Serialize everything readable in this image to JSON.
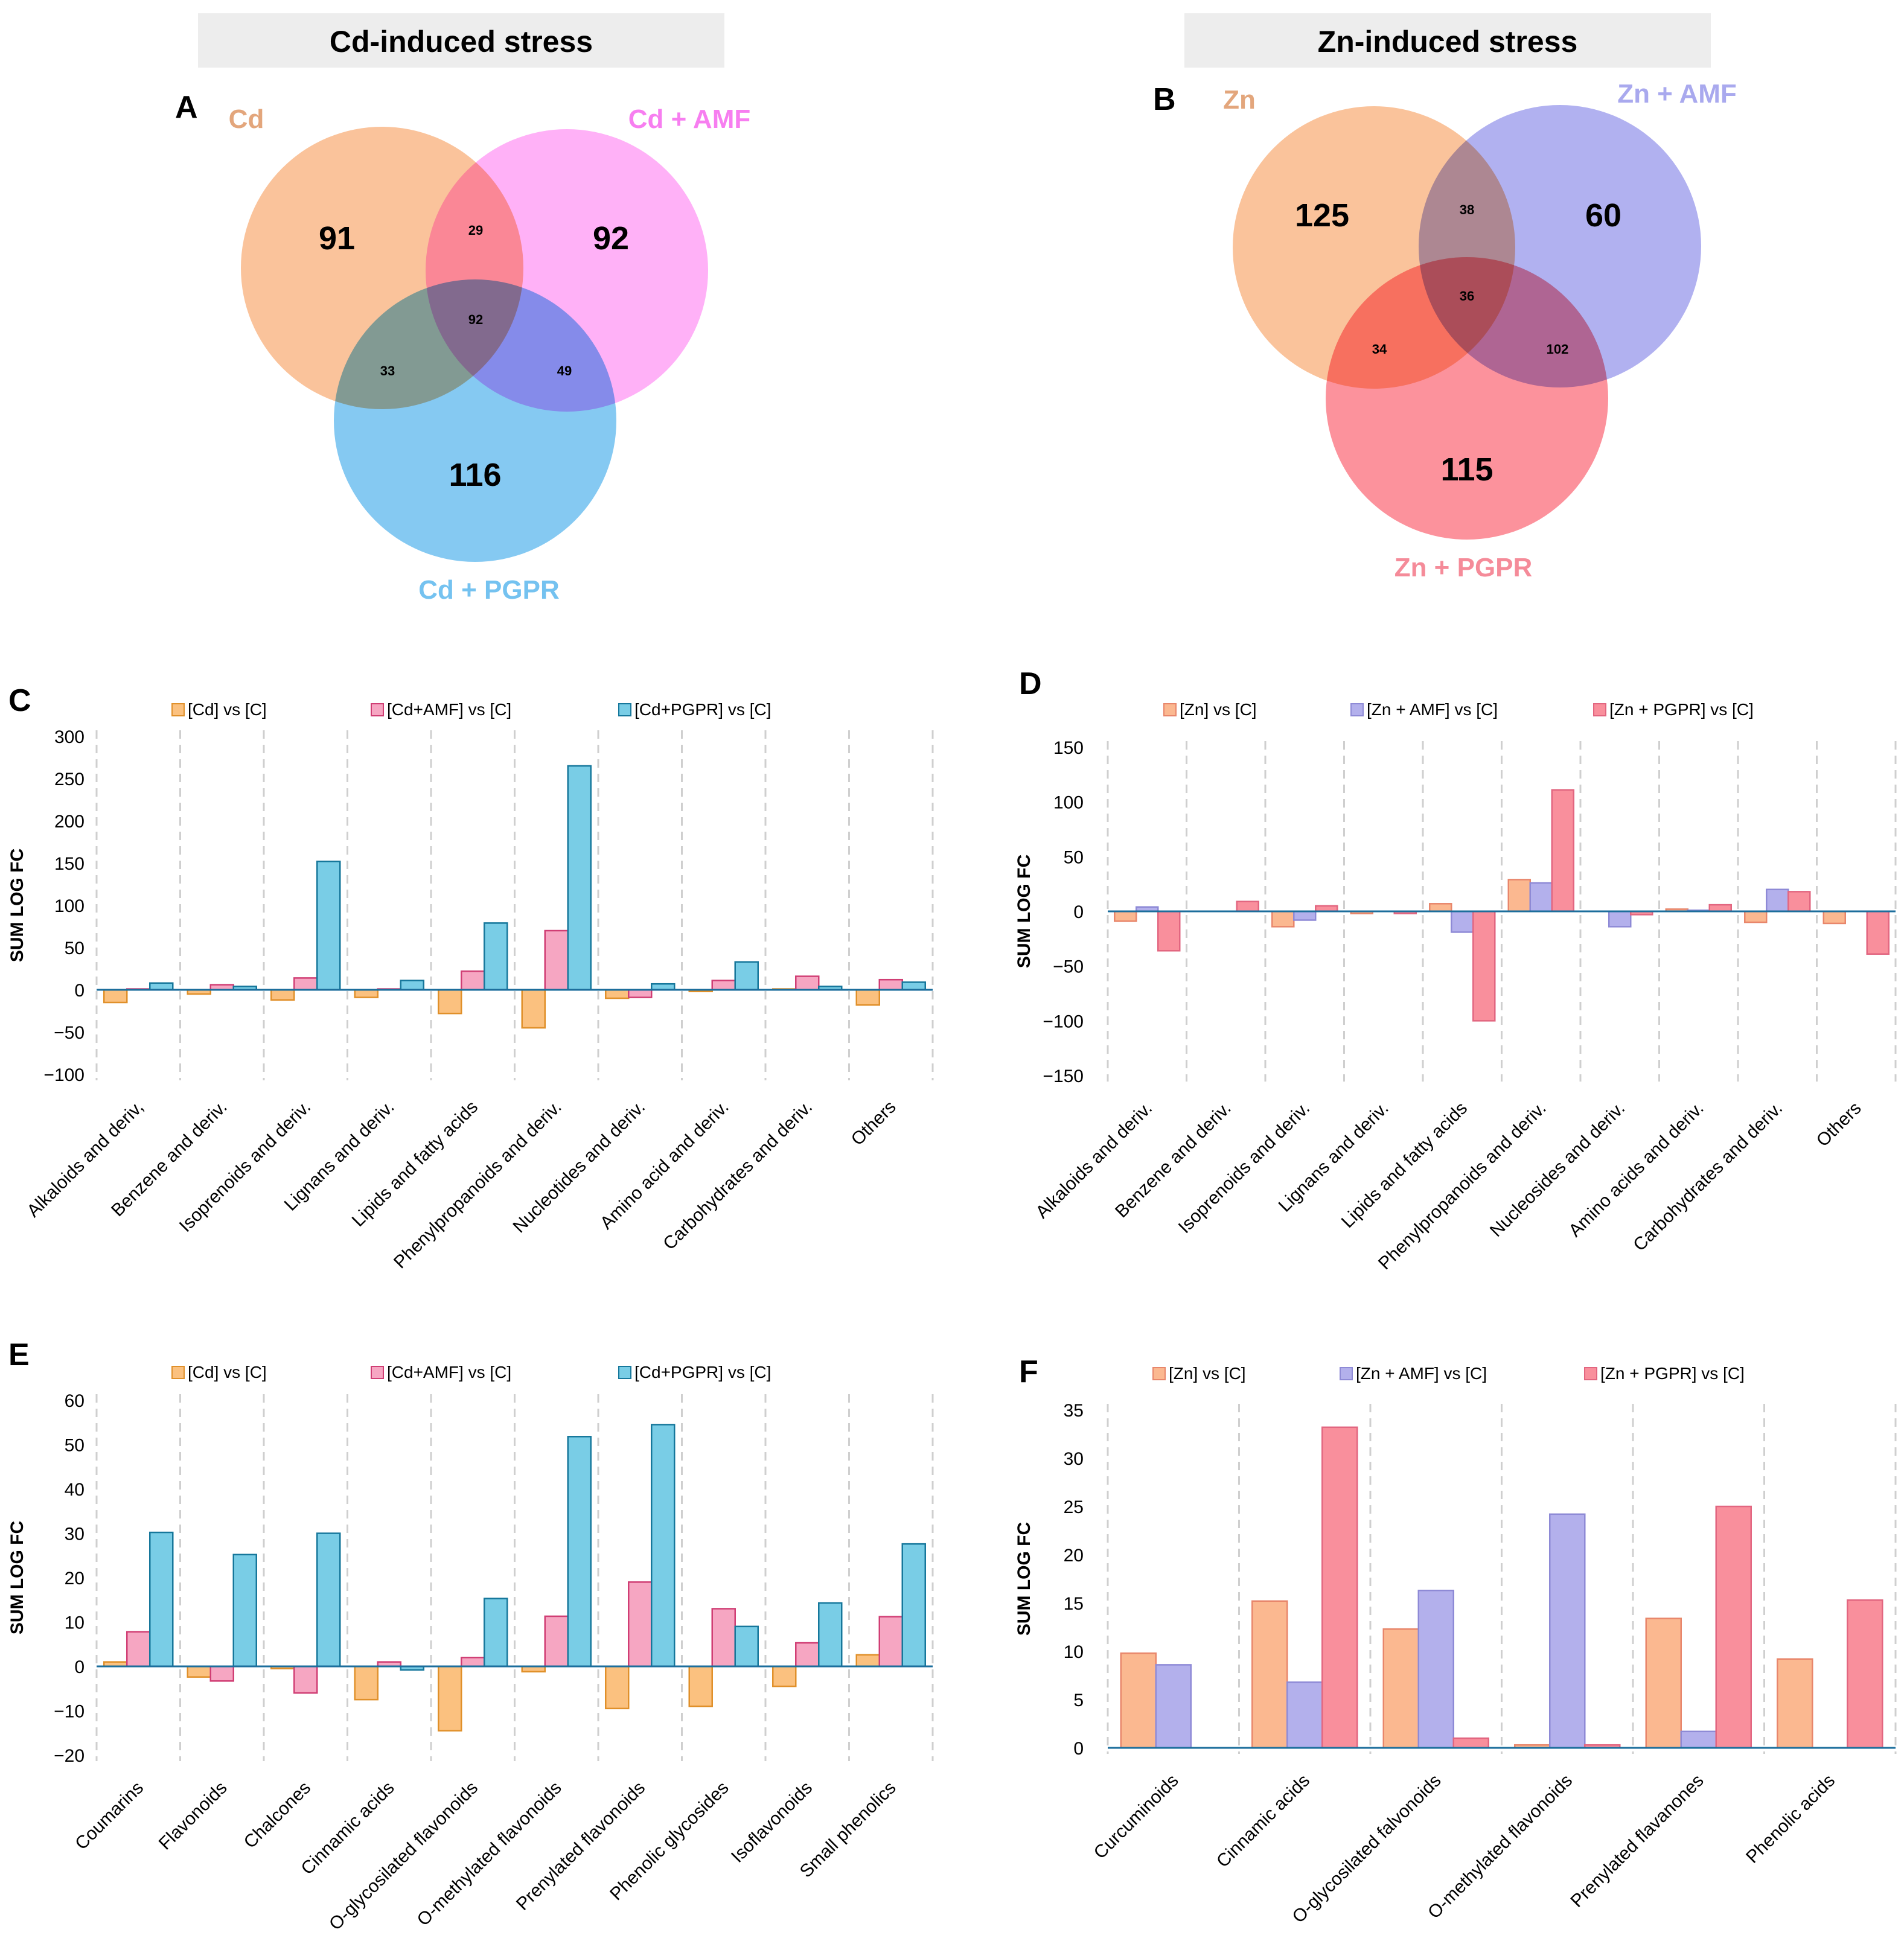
{
  "headers": {
    "cd": "Cd-induced stress",
    "zn": "Zn-induced stress"
  },
  "panel_letters": {
    "a": "A",
    "b": "B",
    "c": "C",
    "d": "D",
    "e": "E",
    "f": "F"
  },
  "colors": {
    "cd_fill": "#f9b98a",
    "cd_label": "#e3a67c",
    "cdamf_fill": "#ffadf7",
    "cdamf_label": "#f77ef0",
    "cdpgpr_fill": "#86cbf4",
    "cdpgpr_label": "#74c2f0",
    "zn_fill": "#f9b98a",
    "zn_label": "#e3a67c",
    "znamf_fill": "#aeaeee",
    "znamf_label": "#a9a9ee",
    "znpgpr_fill": "#fb8a94",
    "znpgpr_label": "#f58b99",
    "header_bg": "#ededed"
  },
  "venn_cd": {
    "labels": {
      "s1": "Cd",
      "s2": "Cd + AMF",
      "s3": "Cd + PGPR"
    },
    "counts": {
      "only1": "91",
      "only2": "92",
      "only3": "116",
      "i12": "29",
      "i13": "33",
      "i23": "49",
      "i123": "92"
    }
  },
  "venn_zn": {
    "labels": {
      "s1": "Zn",
      "s2": "Zn + AMF",
      "s3": "Zn + PGPR"
    },
    "counts": {
      "only1": "125",
      "only2": "60",
      "only3": "115",
      "i12": "38",
      "i13": "34",
      "i23": "102",
      "i123": "36"
    }
  },
  "chart_data": [
    {
      "panel": "C",
      "type": "bar",
      "ylabel": "SUM LOG FC",
      "ylim": [
        -100,
        300
      ],
      "yticks": [
        -100,
        -50,
        0,
        50,
        100,
        150,
        200,
        250,
        300
      ],
      "categories": [
        "Alkaloids and deriv,",
        "Benzene and deriv.",
        "Isoprenoids and deriv.",
        "Lignans and deriv.",
        "Lipids and fatty acids",
        "Phenylpropanoids and deriv.",
        "Nucleotides and deriv.",
        "Amino acid and deriv.",
        "Carbohydrates and deriv.",
        "Others"
      ],
      "series": [
        {
          "name": "[Cd] vs [C]",
          "fill": "#fbc17f",
          "stroke": "#e0902a",
          "values": [
            -15,
            -5,
            -12,
            -9,
            -28,
            -45,
            -10,
            -2,
            1,
            -18
          ]
        },
        {
          "name": "[Cd+AMF] vs [C]",
          "fill": "#f6a6c2",
          "stroke": "#d03e74",
          "values": [
            1,
            6,
            14,
            1,
            22,
            70,
            -9,
            11,
            16,
            12
          ]
        },
        {
          "name": "[Cd+PGPR] vs [C]",
          "fill": "#79cde6",
          "stroke": "#16779b",
          "values": [
            8,
            4,
            152,
            11,
            79,
            265,
            7,
            33,
            4,
            9
          ]
        }
      ]
    },
    {
      "panel": "D",
      "type": "bar",
      "ylabel": "SUM LOG FC",
      "ylim": [
        -150,
        150
      ],
      "yticks": [
        -150,
        -100,
        -50,
        0,
        50,
        100,
        150
      ],
      "categories": [
        "Alkaloids and deriv.",
        "Benzene and deriv.",
        "Isoprenoids and deriv.",
        "Lignans and deriv.",
        "Lipids and fatty acids",
        "Phenylpropanoids and deriv.",
        "Nucleosides and deriv.",
        "Amino acids and deriv.",
        "Carbohydrates and deriv.",
        "Others"
      ],
      "series": [
        {
          "name": "[Zn] vs [C]",
          "fill": "#fbb890",
          "stroke": "#e8866b",
          "values": [
            -9,
            0,
            -14,
            -2,
            7,
            29,
            0,
            2,
            -10,
            -11
          ]
        },
        {
          "name": "[Zn + AMF] vs [C]",
          "fill": "#b3b0ec",
          "stroke": "#8e8ad6",
          "values": [
            4,
            0,
            -8,
            0,
            -19,
            26,
            -14,
            1,
            20,
            0
          ]
        },
        {
          "name": "[Zn + PGPR] vs [C]",
          "fill": "#f98f9c",
          "stroke": "#e26680",
          "values": [
            -36,
            9,
            5,
            -2,
            -100,
            111,
            -3,
            6,
            18,
            -39
          ]
        }
      ]
    },
    {
      "panel": "E",
      "type": "bar",
      "ylabel": "SUM LOG FC",
      "ylim": [
        -20,
        60
      ],
      "yticks": [
        -20,
        -10,
        0,
        10,
        20,
        30,
        40,
        50,
        60
      ],
      "categories": [
        "Coumarins",
        "Flavonoids",
        "Chalcones",
        "Cinnamic acids",
        "O-glycosilated flavonoids",
        "O-methylated flavonoids",
        "Prenylated flavonoids",
        "Phenolic glycosides",
        "Isoflavonoids",
        "Small phenolics"
      ],
      "series": [
        {
          "name": "[Cd] vs [C]",
          "fill": "#fbc17f",
          "stroke": "#e0902a",
          "values": [
            1,
            -2.4,
            -0.5,
            -7.5,
            -14.5,
            -1.2,
            -9.5,
            -9,
            -4.5,
            2.6
          ]
        },
        {
          "name": "[Cd+AMF] vs [C]",
          "fill": "#f6a6c2",
          "stroke": "#d03e74",
          "values": [
            7.8,
            -3.3,
            -6,
            1,
            2,
            11.3,
            19,
            13,
            5.3,
            11.2
          ]
        },
        {
          "name": "[Cd+PGPR] vs [C]",
          "fill": "#79cde6",
          "stroke": "#16779b",
          "values": [
            30.2,
            25.2,
            30,
            -0.8,
            15.3,
            51.8,
            54.5,
            9,
            14.3,
            27.6
          ]
        }
      ]
    },
    {
      "panel": "F",
      "type": "bar",
      "ylabel": "SUM LOG FC",
      "ylim": [
        0,
        35
      ],
      "yticks": [
        0,
        5,
        10,
        15,
        20,
        25,
        30,
        35
      ],
      "categories": [
        "Curcuminoids",
        "Cinnamic acids",
        "O-glycosilated falvonoids",
        "O-methylated flavonoids",
        "Prenylated flavanones",
        "Phenolic acids"
      ],
      "series": [
        {
          "name": "[Zn] vs [C]",
          "fill": "#fbb890",
          "stroke": "#e8866b",
          "values": [
            9.8,
            15.2,
            12.3,
            0.3,
            13.4,
            9.2
          ]
        },
        {
          "name": "[Zn + AMF] vs [C]",
          "fill": "#b3b0ec",
          "stroke": "#8e8ad6",
          "values": [
            8.6,
            6.8,
            16.3,
            24.2,
            1.7,
            0
          ]
        },
        {
          "name": "[Zn + PGPR] vs [C]",
          "fill": "#f98f9c",
          "stroke": "#e26680",
          "values": [
            0,
            33.2,
            1,
            0.3,
            25,
            15.3
          ]
        }
      ]
    }
  ]
}
